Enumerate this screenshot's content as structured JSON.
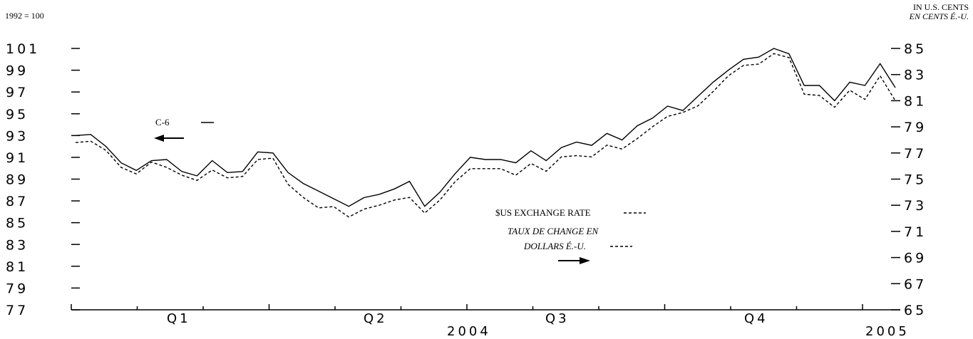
{
  "chart_data": {
    "type": "line",
    "left_axis_note": "1992 = 100",
    "right_axis_note_en": "IN U.S. CENTS",
    "right_axis_note_fr": "EN CENTS É.-U.",
    "left_axis": {
      "range": [
        77,
        101
      ],
      "ticks": [
        "101",
        "99",
        "97",
        "95",
        "93",
        "91",
        "89",
        "87",
        "85",
        "83",
        "81",
        "79",
        "77"
      ]
    },
    "right_axis": {
      "range": [
        65,
        85
      ],
      "ticks": [
        "85",
        "83",
        "81",
        "79",
        "77",
        "75",
        "73",
        "71",
        "69",
        "67",
        "65"
      ]
    },
    "x_labels": [
      "Q1",
      "Q2",
      "Q3",
      "Q4"
    ],
    "year_labels": [
      "2004",
      "2005"
    ],
    "legend": {
      "c6_label": "C-6",
      "fx_label_en": "$US EXCHANGE RATE",
      "fx_label_fr_line1": "TAUX DE CHANGE EN",
      "fx_label_fr_line2": "DOLLARS É.-U."
    },
    "series": [
      {
        "name": "C-6",
        "axis": "left",
        "style": "solid",
        "values": [
          93.0,
          93.1,
          92.0,
          90.5,
          89.8,
          90.7,
          90.8,
          89.7,
          89.3,
          90.7,
          89.6,
          89.7,
          91.5,
          91.4,
          89.6,
          88.6,
          87.9,
          87.2,
          86.5,
          87.3,
          87.6,
          88.1,
          88.8,
          86.5,
          87.8,
          89.5,
          91.0,
          90.8,
          90.8,
          90.5,
          91.6,
          90.7,
          91.9,
          92.4,
          92.1,
          93.2,
          92.6,
          93.9,
          94.6,
          95.7,
          95.3,
          96.6,
          97.9,
          99.0,
          100.0,
          100.2,
          101.0,
          100.5,
          97.6,
          97.6,
          96.2,
          97.9,
          97.6,
          99.6,
          97.4
        ]
      },
      {
        "name": "$US EXCHANGE RATE",
        "axis": "right",
        "style": "dashed",
        "values": [
          77.8,
          77.9,
          77.2,
          75.9,
          75.4,
          76.3,
          75.9,
          75.3,
          74.9,
          75.7,
          75.1,
          75.2,
          76.5,
          76.6,
          74.6,
          73.6,
          72.8,
          72.9,
          72.1,
          72.7,
          73.0,
          73.4,
          73.6,
          72.4,
          73.4,
          74.8,
          75.8,
          75.8,
          75.8,
          75.3,
          76.2,
          75.6,
          76.7,
          76.8,
          76.7,
          77.6,
          77.3,
          78.1,
          79.0,
          79.8,
          80.1,
          80.6,
          81.7,
          82.9,
          83.7,
          83.8,
          84.6,
          84.3,
          81.5,
          81.4,
          80.5,
          81.8,
          81.1,
          82.9,
          81.0
        ]
      }
    ]
  }
}
